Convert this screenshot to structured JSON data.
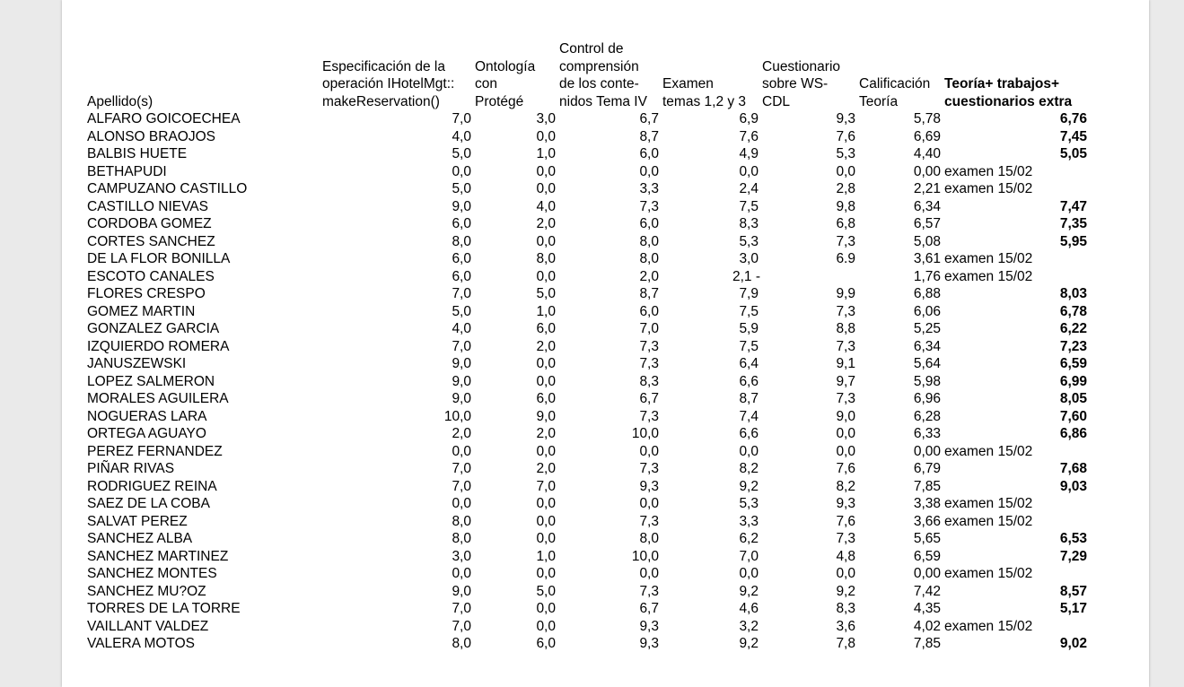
{
  "headers": [
    [
      "Apellido(s)"
    ],
    [
      "Especificación de la",
      "operación IHotelMgt::",
      "makeReservation()"
    ],
    [
      "Ontología",
      "con",
      "Protégé"
    ],
    [
      "Control de",
      "comprensión",
      "de los conte-",
      "nidos Tema IV"
    ],
    [
      "Examen",
      "temas 1,2 y 3"
    ],
    [
      "Cuestionario",
      "sobre WS-",
      "CDL"
    ],
    [
      "Calificación",
      "Teoría"
    ],
    [
      "Teoría+ trabajos+",
      "cuestionarios extra"
    ]
  ],
  "rows": [
    [
      "ALFARO GOICOECHEA",
      "7,0",
      "3,0",
      "6,7",
      "6,9",
      "9,3",
      "5,78",
      "6,76"
    ],
    [
      "ALONSO BRAOJOS",
      "4,0",
      "0,0",
      "8,7",
      "7,6",
      "7,6",
      "6,69",
      "7,45"
    ],
    [
      "BALBIS HUETE",
      "5,0",
      "1,0",
      "6,0",
      "4,9",
      "5,3",
      "4,40",
      "5,05"
    ],
    [
      "BETHAPUDI",
      "0,0",
      "0,0",
      "0,0",
      "0,0",
      "0,0",
      "0,00",
      "examen 15/02"
    ],
    [
      "CAMPUZANO CASTILLO",
      "5,0",
      "0,0",
      "3,3",
      "2,4",
      "2,8",
      "2,21",
      "examen 15/02"
    ],
    [
      "CASTILLO NIEVAS",
      "9,0",
      "4,0",
      "7,3",
      "7,5",
      "9,8",
      "6,34",
      "7,47"
    ],
    [
      "CORDOBA GOMEZ",
      "6,0",
      "2,0",
      "6,0",
      "8,3",
      "6,8",
      "6,57",
      "7,35"
    ],
    [
      "CORTES SANCHEZ",
      "8,0",
      "0,0",
      "8,0",
      "5,3",
      "7,3",
      "5,08",
      "5,95"
    ],
    [
      "DE LA FLOR BONILLA",
      "6,0",
      "8,0",
      "8,0",
      "3,0",
      "6.9",
      "3,61",
      "examen 15/02"
    ],
    [
      "ESCOTO CANALES",
      "6,0",
      "0,0",
      "2,0",
      "2,1 -",
      "",
      "1,76",
      "examen 15/02"
    ],
    [
      "FLORES CRESPO",
      "7,0",
      "5,0",
      "8,7",
      "7,9",
      "9,9",
      "6,88",
      "8,03"
    ],
    [
      "GOMEZ MARTIN",
      "5,0",
      "1,0",
      "6,0",
      "7,5",
      "7,3",
      "6,06",
      "6,78"
    ],
    [
      "GONZALEZ GARCIA",
      "4,0",
      "6,0",
      "7,0",
      "5,9",
      "8,8",
      "5,25",
      "6,22"
    ],
    [
      "IZQUIERDO ROMERA",
      "7,0",
      "2,0",
      "7,3",
      "7,5",
      "7,3",
      "6,34",
      "7,23"
    ],
    [
      "JANUSZEWSKI",
      "9,0",
      "0,0",
      "7,3",
      "6,4",
      "9,1",
      "5,64",
      "6,59"
    ],
    [
      "LOPEZ SALMERON",
      "9,0",
      "0,0",
      "8,3",
      "6,6",
      "9,7",
      "5,98",
      "6,99"
    ],
    [
      "MORALES AGUILERA",
      "9,0",
      "6,0",
      "6,7",
      "8,7",
      "7,3",
      "6,96",
      "8,05"
    ],
    [
      "NOGUERAS LARA",
      "10,0",
      "9,0",
      "7,3",
      "7,4",
      "9,0",
      "6,28",
      "7,60"
    ],
    [
      "ORTEGA AGUAYO",
      "2,0",
      "2,0",
      "10,0",
      "6,6",
      "0,0",
      "6,33",
      "6,86"
    ],
    [
      "PEREZ FERNANDEZ",
      "0,0",
      "0,0",
      "0,0",
      "0,0",
      "0,0",
      "0,00",
      "examen 15/02"
    ],
    [
      "PIÑAR RIVAS",
      "7,0",
      "2,0",
      "7,3",
      "8,2",
      "7,6",
      "6,79",
      "7,68"
    ],
    [
      "RODRIGUEZ REINA",
      "7,0",
      "7,0",
      "9,3",
      "9,2",
      "8,2",
      "7,85",
      "9,03"
    ],
    [
      "SAEZ DE LA COBA",
      "0,0",
      "0,0",
      "0,0",
      "5,3",
      "9,3",
      "3,38",
      "examen 15/02"
    ],
    [
      "SALVAT PEREZ",
      "8,0",
      "0,0",
      "7,3",
      "3,3",
      "7,6",
      "3,66",
      "examen 15/02"
    ],
    [
      "SANCHEZ ALBA",
      "8,0",
      "0,0",
      "8,0",
      "6,2",
      "7,3",
      "5,65",
      "6,53"
    ],
    [
      "SANCHEZ MARTINEZ",
      "3,0",
      "1,0",
      "10,0",
      "7,0",
      "4,8",
      "6,59",
      "7,29"
    ],
    [
      "SANCHEZ MONTES",
      "0,0",
      "0,0",
      "0,0",
      "0,0",
      "0,0",
      "0,00",
      "examen 15/02"
    ],
    [
      "SANCHEZ MU?OZ",
      "9,0",
      "5,0",
      "7,3",
      "9,2",
      "9,2",
      "7,42",
      "8,57"
    ],
    [
      "TORRES DE LA TORRE",
      "7,0",
      "0,0",
      "6,7",
      "4,6",
      "8,3",
      "4,35",
      "5,17"
    ],
    [
      "VAILLANT VALDEZ",
      "7,0",
      "0,0",
      "9,3",
      "3,2",
      "3,6",
      "4,02",
      "examen 15/02"
    ],
    [
      "VALERA MOTOS",
      "8,0",
      "6,0",
      "9,3",
      "9,2",
      "7,8",
      "7,85",
      "9,02"
    ]
  ]
}
